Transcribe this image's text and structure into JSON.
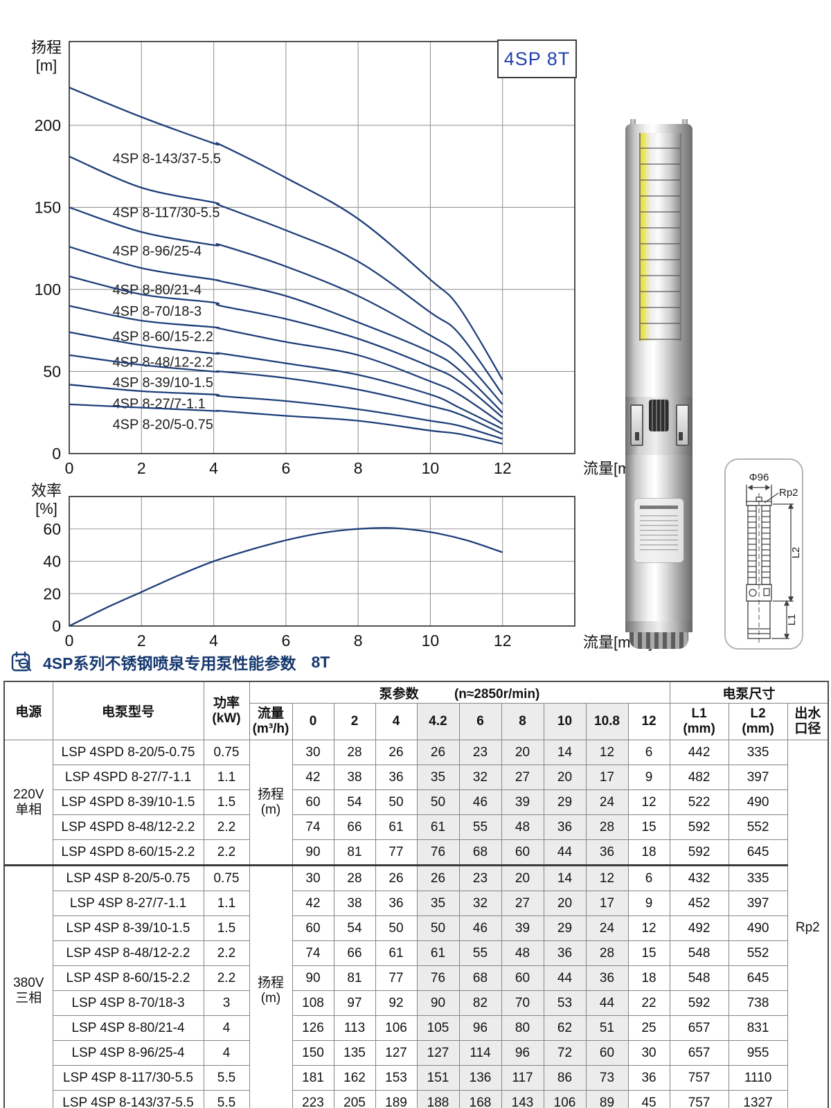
{
  "badge": {
    "label": "4SP 8T"
  },
  "section": {
    "icon": "clipboard-magnifier-icon",
    "title": "4SP系列不锈钢喷泉专用泵性能参数",
    "suffix": "8T"
  },
  "head_chart": {
    "ylabel": "扬程\n[m]",
    "xlabel": "流量[m³/h]"
  },
  "eff_chart": {
    "ylabel": "效率\n[%]",
    "xlabel": "流量[m³/h]"
  },
  "dimensions": {
    "diameter": "Φ96",
    "outlet": "Rp2",
    "upper": "L2",
    "lower": "L1"
  },
  "chart_data": [
    {
      "type": "line",
      "title": "4SP 8T",
      "xlabel": "流量[m³/h]",
      "ylabel": "扬程[m]",
      "x": [
        0,
        2,
        4,
        4.2,
        6,
        8,
        10,
        10.8,
        12
      ],
      "series": [
        {
          "name": "4SP 8-143/37-5.5",
          "values": [
            223,
            205,
            189,
            188,
            168,
            143,
            106,
            89,
            45
          ],
          "label_y": 180
        },
        {
          "name": "4SP 8-117/30-5.5",
          "values": [
            181,
            162,
            153,
            151,
            136,
            117,
            86,
            73,
            36
          ],
          "label_y": 147
        },
        {
          "name": "4SP 8-96/25-4",
          "values": [
            150,
            135,
            127,
            127,
            114,
            96,
            72,
            60,
            30
          ],
          "label_y": 123.5
        },
        {
          "name": "4SP 8-80/21-4",
          "values": [
            126,
            113,
            106,
            105,
            96,
            80,
            62,
            51,
            25
          ],
          "label_y": 100
        },
        {
          "name": "4SP 8-70/18-3",
          "values": [
            108,
            97,
            92,
            90,
            82,
            70,
            53,
            44,
            22
          ],
          "label_y": 87
        },
        {
          "name": "4SP 8-60/15-2.2",
          "values": [
            90,
            81,
            77,
            76,
            68,
            60,
            44,
            36,
            18
          ],
          "label_y": 71.5
        },
        {
          "name": "4SP 8-48/12-2.2",
          "values": [
            74,
            66,
            61,
            61,
            55,
            48,
            36,
            28,
            15
          ],
          "label_y": 56
        },
        {
          "name": "4SP 8-39/10-1.5",
          "values": [
            60,
            54,
            50,
            50,
            46,
            39,
            29,
            24,
            12
          ],
          "label_y": 43.5
        },
        {
          "name": "4SP 8-27/7-1.1",
          "values": [
            42,
            38,
            36,
            35,
            32,
            27,
            20,
            17,
            9
          ],
          "label_y": 30.5
        },
        {
          "name": "4SP 8-20/5-0.75",
          "values": [
            30,
            28,
            26,
            26,
            23,
            20,
            14,
            12,
            6
          ],
          "label_y": 18
        }
      ],
      "label_x": 1.2,
      "xlim": [
        0,
        14
      ],
      "ylim": [
        0,
        251
      ],
      "xticks": [
        0,
        2,
        4,
        6,
        8,
        10,
        12
      ],
      "yticks": [
        0,
        50,
        100,
        150,
        200
      ],
      "grid": true,
      "legend": "inline-labels",
      "line_color": "#1d3e78"
    },
    {
      "type": "line",
      "xlabel": "流量[m³/h]",
      "ylabel": "效率[%]",
      "x": [
        0,
        1,
        2,
        3,
        4,
        5,
        6,
        7,
        8,
        9,
        10,
        11,
        12
      ],
      "series": [
        {
          "name": "效率",
          "values": [
            0,
            11,
            21,
            31,
            40,
            47,
            53,
            57.5,
            60,
            60.5,
            58,
            53,
            45.5
          ]
        }
      ],
      "xlim": [
        0,
        14
      ],
      "ylim": [
        0,
        80
      ],
      "xticks": [
        0,
        2,
        4,
        6,
        8,
        10,
        12
      ],
      "yticks": [
        0,
        20,
        40,
        60
      ],
      "grid": true,
      "line_color": "#1d3e78"
    }
  ],
  "table": {
    "header": {
      "power_source": "电源",
      "model": "电泵型号",
      "power_kw": "功率\n(kW)",
      "pump_params": "泵参数",
      "speed": "(n≈2850r/min)",
      "flow": "流量\n(m³/h)",
      "flow_cols": [
        "0",
        "2",
        "4",
        "4.2",
        "6",
        "8",
        "10",
        "10.8",
        "12"
      ],
      "dims": "电泵尺寸",
      "l1": "L1\n(mm)",
      "l2": "L2\n(mm)",
      "outlet": "出水\n口径"
    },
    "groups": [
      {
        "source": "220V\n单相",
        "head_label": "扬程\n(m)",
        "rows": [
          {
            "model": "LSP 4SPD 8-20/5-0.75",
            "kw": "0.75",
            "heads": [
              30,
              28,
              26,
              26,
              23,
              20,
              14,
              12,
              6
            ],
            "l1": "442",
            "l2": "335"
          },
          {
            "model": "LSP 4SPD 8-27/7-1.1",
            "kw": "1.1",
            "heads": [
              42,
              38,
              36,
              35,
              32,
              27,
              20,
              17,
              9
            ],
            "l1": "482",
            "l2": "397"
          },
          {
            "model": "LSP 4SPD 8-39/10-1.5",
            "kw": "1.5",
            "heads": [
              60,
              54,
              50,
              50,
              46,
              39,
              29,
              24,
              12
            ],
            "l1": "522",
            "l2": "490"
          },
          {
            "model": "LSP 4SPD 8-48/12-2.2",
            "kw": "2.2",
            "heads": [
              74,
              66,
              61,
              61,
              55,
              48,
              36,
              28,
              15
            ],
            "l1": "592",
            "l2": "552"
          },
          {
            "model": "LSP 4SPD 8-60/15-2.2",
            "kw": "2.2",
            "heads": [
              90,
              81,
              77,
              76,
              68,
              60,
              44,
              36,
              18
            ],
            "l1": "592",
            "l2": "645"
          }
        ]
      },
      {
        "source": "380V\n三相",
        "head_label": "扬程\n(m)",
        "rows": [
          {
            "model": "LSP 4SP 8-20/5-0.75",
            "kw": "0.75",
            "heads": [
              30,
              28,
              26,
              26,
              23,
              20,
              14,
              12,
              6
            ],
            "l1": "432",
            "l2": "335"
          },
          {
            "model": "LSP 4SP 8-27/7-1.1",
            "kw": "1.1",
            "heads": [
              42,
              38,
              36,
              35,
              32,
              27,
              20,
              17,
              9
            ],
            "l1": "452",
            "l2": "397"
          },
          {
            "model": "LSP 4SP 8-39/10-1.5",
            "kw": "1.5",
            "heads": [
              60,
              54,
              50,
              50,
              46,
              39,
              29,
              24,
              12
            ],
            "l1": "492",
            "l2": "490"
          },
          {
            "model": "LSP 4SP 8-48/12-2.2",
            "kw": "2.2",
            "heads": [
              74,
              66,
              61,
              61,
              55,
              48,
              36,
              28,
              15
            ],
            "l1": "548",
            "l2": "552"
          },
          {
            "model": "LSP 4SP 8-60/15-2.2",
            "kw": "2.2",
            "heads": [
              90,
              81,
              77,
              76,
              68,
              60,
              44,
              36,
              18
            ],
            "l1": "548",
            "l2": "645"
          },
          {
            "model": "LSP 4SP 8-70/18-3",
            "kw": "3",
            "heads": [
              108,
              97,
              92,
              90,
              82,
              70,
              53,
              44,
              22
            ],
            "l1": "592",
            "l2": "738"
          },
          {
            "model": "LSP 4SP 8-80/21-4",
            "kw": "4",
            "heads": [
              126,
              113,
              106,
              105,
              96,
              80,
              62,
              51,
              25
            ],
            "l1": "657",
            "l2": "831"
          },
          {
            "model": "LSP 4SP 8-96/25-4",
            "kw": "4",
            "heads": [
              150,
              135,
              127,
              127,
              114,
              96,
              72,
              60,
              30
            ],
            "l1": "657",
            "l2": "955"
          },
          {
            "model": "LSP 4SP 8-117/30-5.5",
            "kw": "5.5",
            "heads": [
              181,
              162,
              153,
              151,
              136,
              117,
              86,
              73,
              36
            ],
            "l1": "757",
            "l2": "1110"
          },
          {
            "model": "LSP 4SP 8-143/37-5.5",
            "kw": "5.5",
            "heads": [
              223,
              205,
              189,
              188,
              168,
              143,
              106,
              89,
              45
            ],
            "l1": "757",
            "l2": "1327"
          }
        ]
      }
    ],
    "outlet_value": "Rp2",
    "shaded_flow_cols": [
      3,
      4,
      5,
      6,
      7
    ]
  }
}
